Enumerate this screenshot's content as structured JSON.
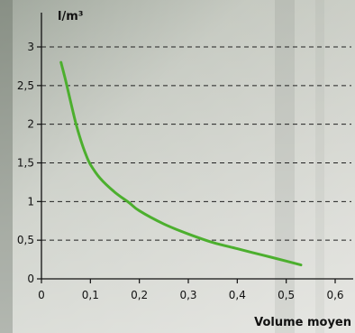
{
  "chart_data": {
    "type": "line",
    "ylabel": "l/m³",
    "xlabel": "Volume moyen",
    "xlim": [
      0,
      0.6
    ],
    "ylim": [
      0,
      3
    ],
    "x_ticks": [
      0,
      0.1,
      0.2,
      0.3,
      0.4,
      0.5,
      0.6
    ],
    "x_tick_labels": [
      "0",
      "0,1",
      "0,2",
      "0,3",
      "0,4",
      "0,5",
      "0,6"
    ],
    "y_ticks": [
      0,
      0.5,
      1,
      1.5,
      2,
      2.5,
      3
    ],
    "y_tick_labels": [
      "0",
      "0,5",
      "1",
      "1,5",
      "2",
      "2,5",
      "3"
    ],
    "grid": "horizontal dashed",
    "series": [
      {
        "color": "#4caf2e",
        "x": [
          0.04,
          0.05,
          0.06,
          0.07,
          0.08,
          0.09,
          0.1,
          0.12,
          0.15,
          0.18,
          0.2,
          0.25,
          0.3,
          0.35,
          0.4,
          0.45,
          0.5,
          0.53
        ],
        "y": [
          2.8,
          2.55,
          2.28,
          2.02,
          1.8,
          1.62,
          1.48,
          1.3,
          1.12,
          0.98,
          0.88,
          0.71,
          0.58,
          0.47,
          0.39,
          0.31,
          0.23,
          0.18
        ]
      }
    ]
  }
}
